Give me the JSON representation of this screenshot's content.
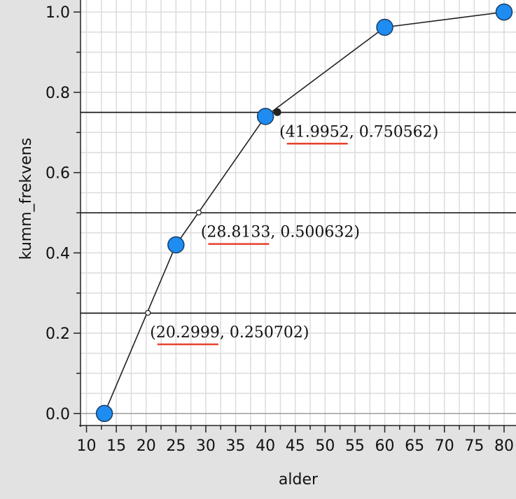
{
  "chart_data": {
    "type": "line",
    "xlabel": "alder",
    "ylabel": "kumm_frekvens",
    "xlim": [
      9,
      82
    ],
    "ylim": [
      -0.03,
      1.03
    ],
    "x_ticks": [
      10,
      15,
      20,
      25,
      30,
      35,
      40,
      45,
      50,
      55,
      60,
      65,
      70,
      75,
      80
    ],
    "y_ticks": [
      0.0,
      0.2,
      0.4,
      0.6,
      0.8,
      1.0
    ],
    "x_tick_labels": [
      "10",
      "15",
      "20",
      "25",
      "30",
      "35",
      "40",
      "45",
      "50",
      "55",
      "60",
      "65",
      "70",
      "75",
      "80"
    ],
    "y_tick_labels": [
      "0.0",
      "0.2",
      "0.4",
      "0.6",
      "0.8",
      "1.0"
    ],
    "grid": true,
    "series": [
      {
        "x": [
          13,
          25,
          40,
          60,
          80
        ],
        "y": [
          0.0,
          0.42,
          0.74,
          0.962,
          1.0
        ],
        "color": "#1e8cf0"
      }
    ],
    "horizontal_lines": [
      0.25,
      0.5,
      0.75
    ],
    "annotations": [
      {
        "x": 20.2999,
        "y": 0.250702,
        "x_text": "20.2999",
        "y_text": "0.250702"
      },
      {
        "x": 28.8133,
        "y": 0.500632,
        "x_text": "28.8133",
        "y_text": "0.500632"
      },
      {
        "x": 41.9952,
        "y": 0.750562,
        "x_text": "41.9952",
        "y_text": "0.750562"
      }
    ],
    "underline_color": "#e8412b"
  }
}
